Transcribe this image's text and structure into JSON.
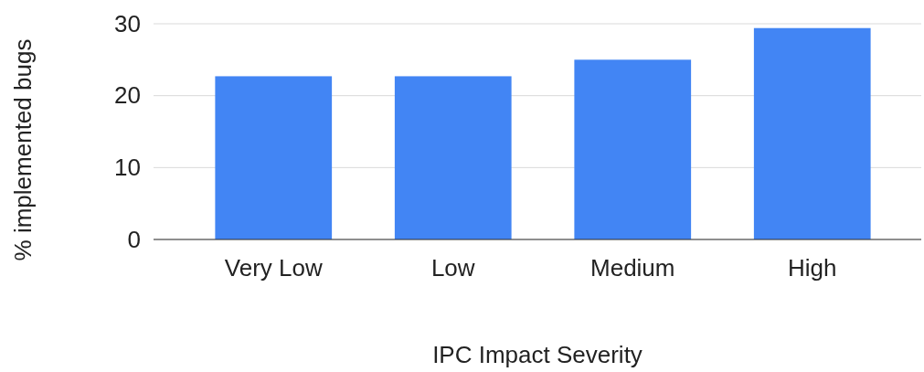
{
  "chart_data": {
    "type": "bar",
    "xlabel": "IPC Impact Severity",
    "ylabel": "% implemented bugs",
    "categories": [
      "Very Low",
      "Low",
      "Medium",
      "High"
    ],
    "values": [
      22.7,
      22.7,
      25.0,
      29.4
    ],
    "color": "#4285f4",
    "ylim": [
      0,
      30
    ],
    "yticks": [
      0,
      10,
      20,
      30
    ],
    "grid": "y"
  }
}
